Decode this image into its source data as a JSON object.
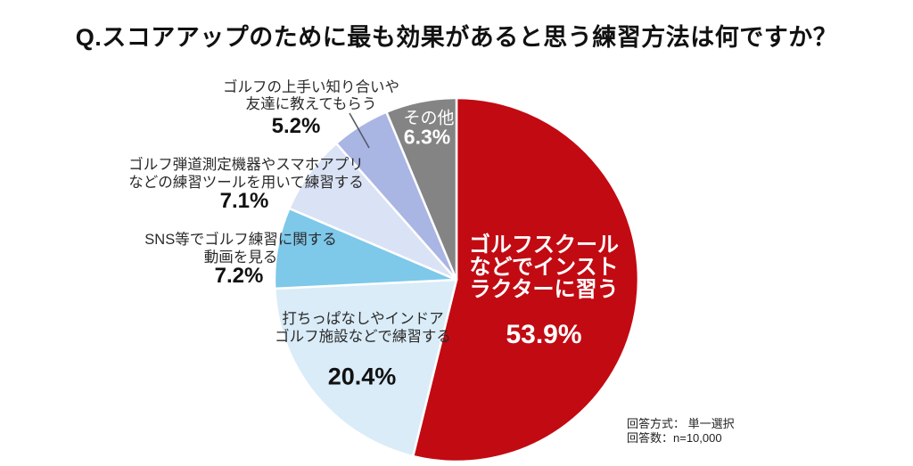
{
  "title": "Q.スコアアップのために最も効果があると思う練習方法は何ですか？",
  "chart_data": {
    "type": "pie",
    "title": "Q.スコアアップのために最も効果があると思う練習方法は何ですか？",
    "value_suffix": "%",
    "start_angle": "top",
    "direction": "clockwise",
    "legend": "none (labels placed on/around slices)",
    "slices": [
      {
        "label": "ゴルフスクールなどでインストラクターに習う",
        "value": 53.9,
        "color": "#C20A12",
        "label_color": "#FFFFFF",
        "label_placement": "inside"
      },
      {
        "label": "打ちっぱなしやインドアゴルフ施設などで練習する",
        "value": 20.4,
        "color": "#D9ECF8",
        "label_color": "#111111",
        "label_placement": "inside"
      },
      {
        "label": "SNS等でゴルフ練習に関する動画を見る",
        "value": 7.2,
        "color": "#7EC8EA",
        "label_color": "#111111",
        "label_placement": "outside"
      },
      {
        "label": "ゴルフ弾道測定機器やスマホアプリなどの練習ツールを用いて練習する",
        "value": 7.1,
        "color": "#DAE2F5",
        "label_color": "#111111",
        "label_placement": "outside"
      },
      {
        "label": "ゴルフの上手い知り合いや友達に教えてもらう",
        "value": 5.2,
        "color": "#A9B5E3",
        "label_color": "#111111",
        "label_placement": "outside-with-leader-line"
      },
      {
        "label": "その他",
        "value": 6.3,
        "color": "#848484",
        "label_color": "#FFFFFF",
        "label_placement": "inside"
      }
    ],
    "footnotes": [
      "回答方式： 単一選択",
      "回答数：n=10,000"
    ]
  },
  "labels": {
    "school": {
      "line1": "ゴルフスクール",
      "line2": "などでインスト",
      "line3": "ラクターに習う",
      "pct": "53.9%"
    },
    "range": {
      "line1": "打ちっぱなしやインドア",
      "line2": "ゴルフ施設などで練習する",
      "pct": "20.4%"
    },
    "sns": {
      "line1": "SNS等でゴルフ練習に関する",
      "line2": "動画を見る",
      "pct": "7.2%"
    },
    "tools": {
      "line1": "ゴルフ弾道測定機器やスマホアプリ",
      "line2": "などの練習ツールを用いて練習する",
      "pct": "7.1%"
    },
    "friends": {
      "line1": "ゴルフの上手い知り合いや",
      "line2": "友達に教えてもらう",
      "pct": "5.2%"
    },
    "other": {
      "name": "その他",
      "pct": "6.3%"
    }
  },
  "footer": {
    "method": "回答方式： 単一選択",
    "count": "回答数：n=10,000"
  }
}
